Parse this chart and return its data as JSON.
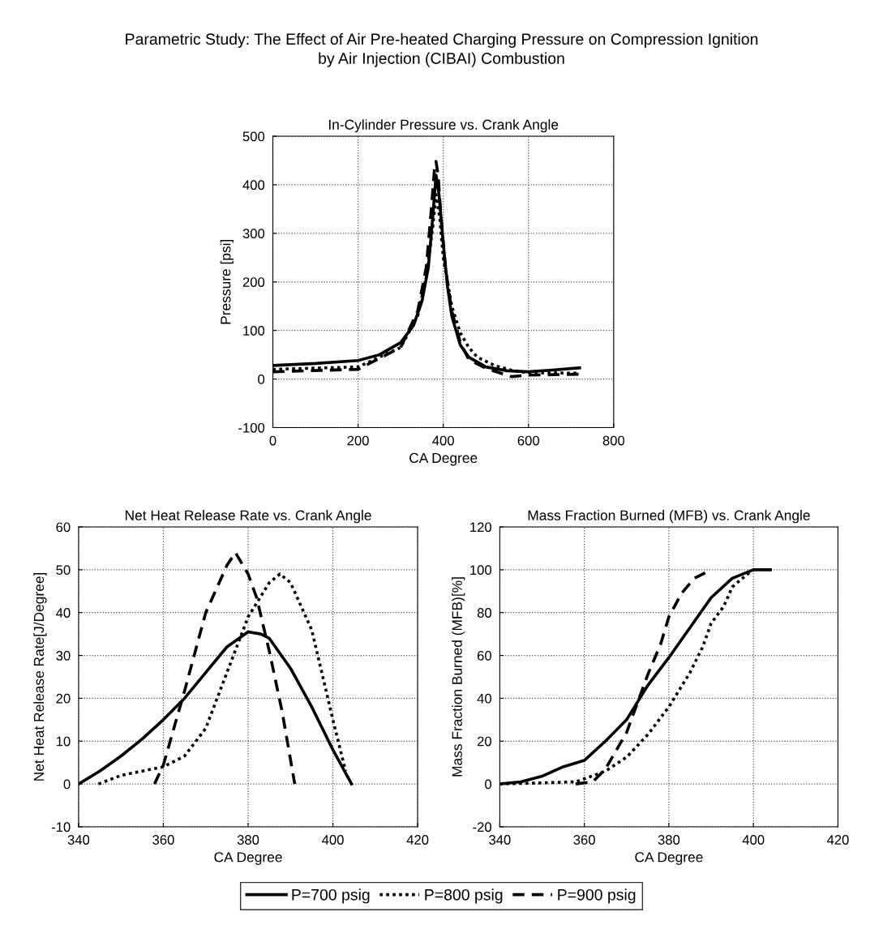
{
  "chart_data": [
    {
      "type": "line",
      "title": "In-Cylinder Pressure vs. Crank Angle",
      "xlabel": "CA Degree",
      "ylabel": "Pressure [psi]",
      "annotations": [
        "Parametric Study: The Effect of Air Pre-heated Charging Pressure on Compression Ignition\nby Air Injection (CIBAI) Combustion"
      ],
      "xlim": [
        0,
        800
      ],
      "xticks": [
        0,
        200,
        400,
        600,
        800
      ],
      "ylim": [
        -100,
        500
      ],
      "yticks": [
        -100,
        0,
        100,
        200,
        300,
        400,
        500
      ],
      "grid": true,
      "legend": "bottom",
      "series": [
        {
          "name": "P=700 psig",
          "color": "#000000",
          "line_style": "solid",
          "x": [
            0,
            100,
            200,
            250,
            300,
            330,
            350,
            365,
            375,
            383,
            390,
            400,
            410,
            420,
            440,
            460,
            500,
            550,
            600,
            650,
            720
          ],
          "values": [
            28,
            32,
            38,
            50,
            75,
            110,
            160,
            230,
            330,
            420,
            380,
            280,
            190,
            130,
            70,
            45,
            25,
            17,
            15,
            18,
            23
          ]
        },
        {
          "name": "P=800 psig",
          "color": "#000000",
          "line_style": "dotted",
          "x": [
            0,
            200,
            300,
            340,
            360,
            375,
            383,
            392,
            400,
            420,
            440,
            460,
            480,
            520,
            560,
            600,
            720
          ],
          "values": [
            20,
            25,
            65,
            130,
            210,
            310,
            380,
            330,
            250,
            150,
            95,
            65,
            45,
            28,
            18,
            13,
            12
          ]
        },
        {
          "name": "P=900 psig",
          "color": "#000000",
          "line_style": "dashed",
          "x": [
            0,
            200,
            300,
            340,
            360,
            372,
            380,
            383,
            388,
            395,
            405,
            420,
            440,
            460,
            500,
            560,
            600,
            720
          ],
          "values": [
            15,
            20,
            65,
            140,
            230,
            350,
            440,
            448,
            420,
            330,
            230,
            140,
            75,
            40,
            22,
            5,
            8,
            10
          ]
        }
      ]
    },
    {
      "type": "line",
      "title": "Net Heat Release Rate vs. Crank Angle",
      "xlabel": "CA Degree",
      "ylabel": "Net Heat Release Rate[J/Degree]",
      "xlim": [
        340,
        420
      ],
      "xticks": [
        340,
        360,
        380,
        400,
        420
      ],
      "ylim": [
        -10,
        60
      ],
      "yticks": [
        -10,
        0,
        10,
        20,
        30,
        40,
        50,
        60
      ],
      "grid": true,
      "series": [
        {
          "color": "#000000",
          "line_style": "solid",
          "x": [
            340,
            345,
            350,
            355,
            360,
            365,
            370,
            375,
            380,
            383,
            385,
            390,
            395,
            400,
            404.4
          ],
          "values": [
            0,
            3,
            6.5,
            10.5,
            15,
            20,
            26,
            32,
            35.5,
            35,
            34,
            27,
            18,
            8,
            0
          ]
        },
        {
          "color": "#000000",
          "line_style": "dotted",
          "x": [
            344.7,
            350,
            355,
            360,
            365,
            370,
            375,
            380,
            385,
            387.5,
            390,
            395,
            400,
            403
          ],
          "values": [
            0,
            2,
            3,
            4,
            6.5,
            13,
            26,
            39,
            47,
            49,
            47,
            36,
            15,
            3
          ]
        },
        {
          "color": "#000000",
          "line_style": "dashed",
          "x": [
            357.9,
            360,
            365,
            370,
            375,
            377,
            380,
            382,
            385,
            388,
            391
          ],
          "values": [
            0,
            4.4,
            21.7,
            40,
            51,
            54,
            49,
            43.5,
            31,
            17,
            0
          ]
        }
      ]
    },
    {
      "type": "line",
      "title": "Mass Fraction Burned (MFB) vs. Crank Angle",
      "xlabel": "CA Degree",
      "ylabel": "Mass Fraction Burned (MFB)[%]",
      "xlim": [
        340,
        420
      ],
      "xticks": [
        340,
        360,
        380,
        400,
        420
      ],
      "ylim": [
        -20,
        120
      ],
      "yticks": [
        -20,
        0,
        20,
        40,
        60,
        80,
        100,
        120
      ],
      "grid": true,
      "series": [
        {
          "color": "#000000",
          "line_style": "solid",
          "x": [
            340,
            345,
            350,
            355,
            360,
            365,
            370,
            375,
            380,
            385,
            390,
            395,
            400,
            404
          ],
          "values": [
            0,
            1,
            3.6,
            8,
            11,
            20,
            30,
            46,
            59,
            73,
            87,
            96,
            100,
            100
          ]
        },
        {
          "color": "#000000",
          "line_style": "dotted",
          "x": [
            340,
            350,
            358,
            365,
            370,
            375,
            380,
            385,
            388,
            390,
            393,
            395,
            398,
            400
          ],
          "values": [
            0,
            0.5,
            1,
            6,
            12.5,
            23,
            36,
            52,
            64,
            75,
            83,
            92,
            97,
            100
          ]
        },
        {
          "color": "#000000",
          "line_style": "dashed",
          "x": [
            358,
            362,
            365,
            370,
            375,
            378,
            380,
            383,
            386,
            390
          ],
          "values": [
            0,
            1,
            7,
            24,
            51,
            65,
            78,
            89,
            96,
            100
          ]
        }
      ]
    }
  ]
}
